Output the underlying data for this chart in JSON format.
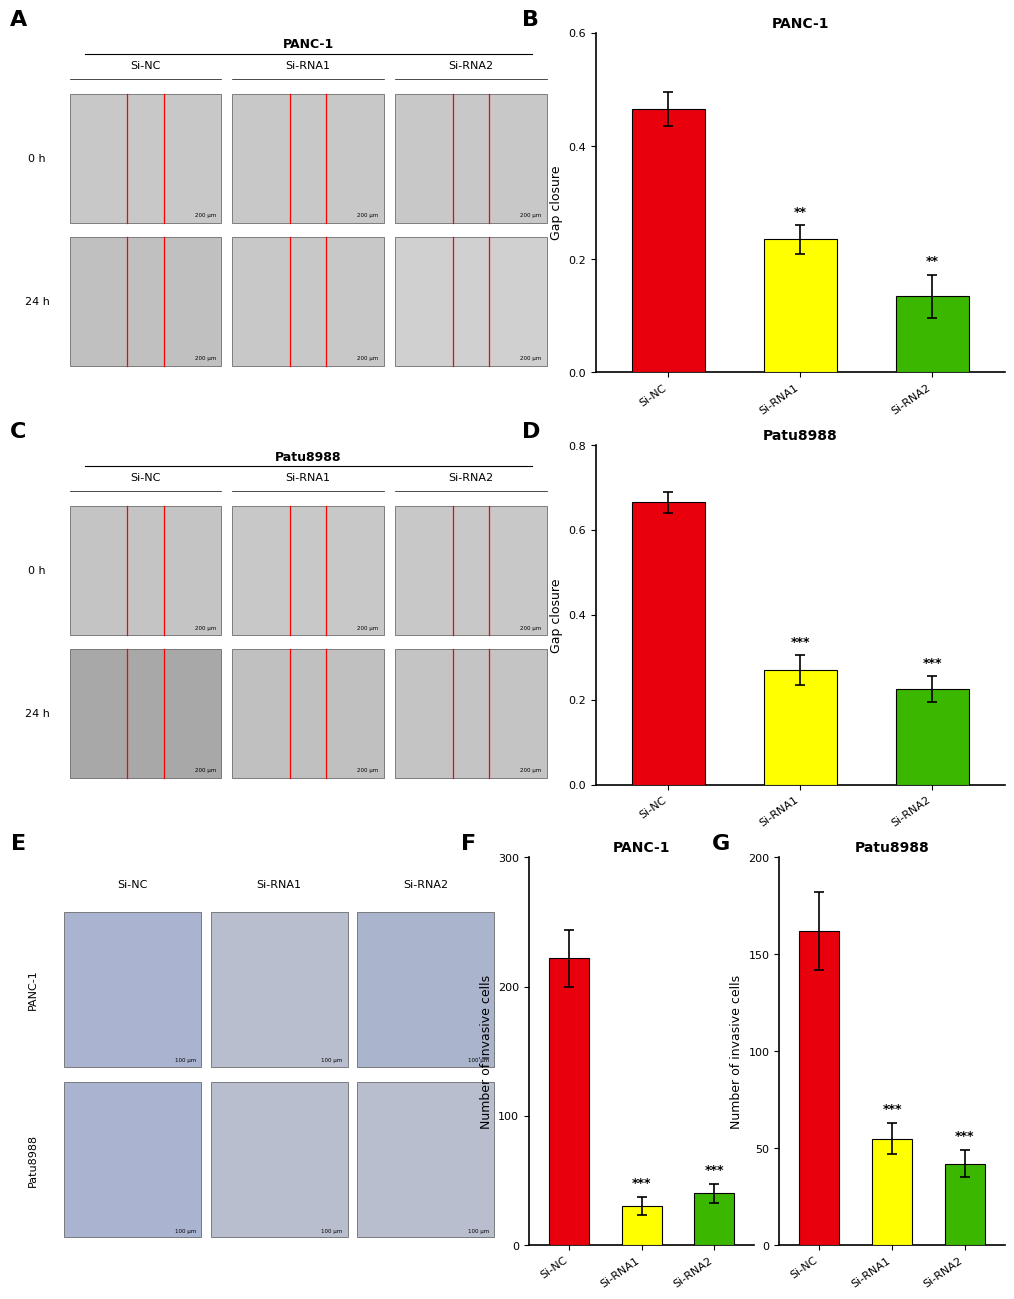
{
  "panel_B": {
    "title": "PANC-1",
    "categories": [
      "Si-NC",
      "Si-RNA1",
      "Si-RNA2"
    ],
    "values": [
      0.465,
      0.235,
      0.135
    ],
    "errors": [
      0.03,
      0.025,
      0.038
    ],
    "colors": [
      "#e8000d",
      "#ffff00",
      "#3cb700"
    ],
    "ylabel": "Gap closure",
    "ylim": [
      0,
      0.6
    ],
    "yticks": [
      0.0,
      0.2,
      0.4,
      0.6
    ],
    "sig_labels": [
      "",
      "**",
      "**"
    ]
  },
  "panel_D": {
    "title": "Patu8988",
    "categories": [
      "Si-NC",
      "Si-RNA1",
      "Si-RNA2"
    ],
    "values": [
      0.665,
      0.27,
      0.225
    ],
    "errors": [
      0.025,
      0.035,
      0.03
    ],
    "colors": [
      "#e8000d",
      "#ffff00",
      "#3cb700"
    ],
    "ylabel": "Gap closure",
    "ylim": [
      0,
      0.8
    ],
    "yticks": [
      0.0,
      0.2,
      0.4,
      0.6,
      0.8
    ],
    "sig_labels": [
      "",
      "***",
      "***"
    ]
  },
  "panel_F": {
    "title": "PANC-1",
    "categories": [
      "Si-NC",
      "Si-RNA1",
      "Si-RNA2"
    ],
    "values": [
      222,
      30,
      40
    ],
    "errors": [
      22,
      7,
      7
    ],
    "colors": [
      "#e8000d",
      "#ffff00",
      "#3cb700"
    ],
    "ylabel": "Number of invasive cells",
    "ylim": [
      0,
      300
    ],
    "yticks": [
      0,
      100,
      200,
      300
    ],
    "sig_labels": [
      "",
      "***",
      "***"
    ]
  },
  "panel_G": {
    "title": "Patu8988",
    "categories": [
      "Si-NC",
      "Si-RNA1",
      "Si-RNA2"
    ],
    "values": [
      162,
      55,
      42
    ],
    "errors": [
      20,
      8,
      7
    ],
    "colors": [
      "#e8000d",
      "#ffff00",
      "#3cb700"
    ],
    "ylabel": "Number of invasive cells",
    "ylim": [
      0,
      200
    ],
    "yticks": [
      0,
      50,
      100,
      150,
      200
    ],
    "sig_labels": [
      "",
      "***",
      "***"
    ]
  },
  "background_color": "#ffffff",
  "label_fontsize": 16,
  "title_fontsize": 10,
  "tick_fontsize": 8,
  "ylabel_fontsize": 9,
  "sig_fontsize": 9,
  "bar_width": 0.55
}
